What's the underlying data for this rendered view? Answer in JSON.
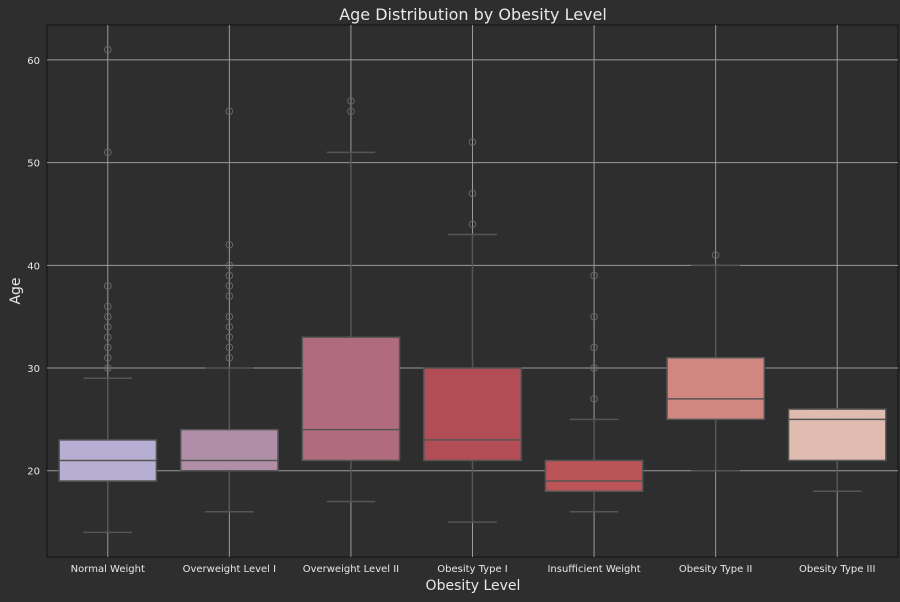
{
  "chart_data": {
    "type": "boxplot",
    "title": "Age Distribution by Obesity Level",
    "xlabel": "Obesity Level",
    "ylabel": "Age",
    "ylim": [
      11.6,
      63.4
    ],
    "yticks": [
      20,
      30,
      40,
      50,
      60
    ],
    "grid": true,
    "categories": [
      "Normal Weight",
      "Overweight Level I",
      "Overweight Level II",
      "Obesity Type I",
      "Insufficient Weight",
      "Obesity Type II",
      "Obesity Type III"
    ],
    "boxes": [
      {
        "q1": 19,
        "median": 21,
        "q3": 23,
        "whislo": 14,
        "whishi": 29,
        "fliers": [
          61,
          51,
          38,
          36,
          35,
          34,
          33,
          32,
          31,
          30
        ],
        "color": "#b7aed3"
      },
      {
        "q1": 20,
        "median": 21,
        "q3": 24,
        "whislo": 16,
        "whishi": 30,
        "fliers": [
          55,
          42,
          40,
          39,
          38,
          37,
          35,
          34,
          33,
          32,
          31
        ],
        "color": "#b18ea8"
      },
      {
        "q1": 21,
        "median": 24,
        "q3": 33,
        "whislo": 17,
        "whishi": 51,
        "fliers": [
          56,
          55
        ],
        "color": "#b06b7e"
      },
      {
        "q1": 21,
        "median": 23,
        "q3": 30,
        "whislo": 15,
        "whishi": 43,
        "fliers": [
          52,
          47,
          44
        ],
        "color": "#b24d56"
      },
      {
        "q1": 18,
        "median": 19,
        "q3": 21,
        "whislo": 16,
        "whishi": 25,
        "fliers": [
          39,
          35,
          32,
          30,
          27
        ],
        "color": "#bb5456"
      },
      {
        "q1": 25,
        "median": 27,
        "q3": 31,
        "whislo": 20,
        "whishi": 40,
        "fliers": [
          41
        ],
        "color": "#d0877f"
      },
      {
        "q1": 21,
        "median": 25,
        "q3": 26,
        "whislo": 18,
        "whishi": 26,
        "fliers": [],
        "color": "#e0bcb0"
      }
    ]
  }
}
